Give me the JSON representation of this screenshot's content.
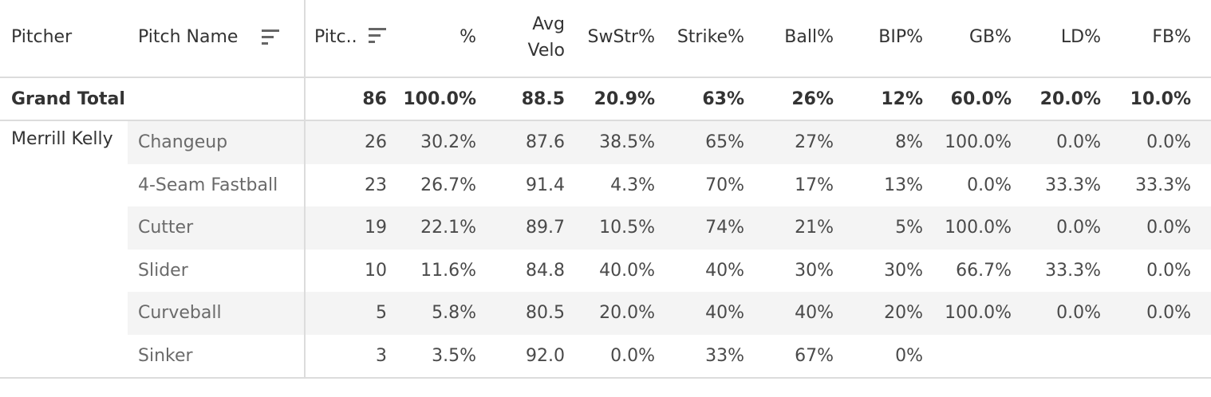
{
  "columns": {
    "pitcher": "Pitcher",
    "pitch_name": "Pitch Name",
    "pitches": "Pitc..",
    "pct": "%",
    "avg_velo_1": "Avg",
    "avg_velo_2": "Velo",
    "swstr": "SwStr%",
    "strike": "Strike%",
    "ball": "Ball%",
    "bip": "BIP%",
    "gb": "GB%",
    "ld": "LD%",
    "fb": "FB%"
  },
  "grand_total": {
    "label": "Grand Total",
    "pitches": "86",
    "pct": "100.0%",
    "avg_velo": "88.5",
    "swstr": "20.9%",
    "strike": "63%",
    "ball": "26%",
    "bip": "12%",
    "gb": "60.0%",
    "ld": "20.0%",
    "fb": "10.0%"
  },
  "pitcher_name": "Merrill Kelly",
  "rows": [
    {
      "name": "Changeup",
      "pitches": "26",
      "pct": "30.2%",
      "avg_velo": "87.6",
      "swstr": "38.5%",
      "strike": "65%",
      "ball": "27%",
      "bip": "8%",
      "gb": "100.0%",
      "ld": "0.0%",
      "fb": "0.0%"
    },
    {
      "name": "4-Seam Fastball",
      "pitches": "23",
      "pct": "26.7%",
      "avg_velo": "91.4",
      "swstr": "4.3%",
      "strike": "70%",
      "ball": "17%",
      "bip": "13%",
      "gb": "0.0%",
      "ld": "33.3%",
      "fb": "33.3%"
    },
    {
      "name": "Cutter",
      "pitches": "19",
      "pct": "22.1%",
      "avg_velo": "89.7",
      "swstr": "10.5%",
      "strike": "74%",
      "ball": "21%",
      "bip": "5%",
      "gb": "100.0%",
      "ld": "0.0%",
      "fb": "0.0%"
    },
    {
      "name": "Slider",
      "pitches": "10",
      "pct": "11.6%",
      "avg_velo": "84.8",
      "swstr": "40.0%",
      "strike": "40%",
      "ball": "30%",
      "bip": "30%",
      "gb": "66.7%",
      "ld": "33.3%",
      "fb": "0.0%"
    },
    {
      "name": "Curveball",
      "pitches": "5",
      "pct": "5.8%",
      "avg_velo": "80.5",
      "swstr": "20.0%",
      "strike": "40%",
      "ball": "40%",
      "bip": "20%",
      "gb": "100.0%",
      "ld": "0.0%",
      "fb": "0.0%"
    },
    {
      "name": "Sinker",
      "pitches": "3",
      "pct": "3.5%",
      "avg_velo": "92.0",
      "swstr": "0.0%",
      "strike": "33%",
      "ball": "67%",
      "bip": "0%",
      "gb": "",
      "ld": "",
      "fb": ""
    }
  ]
}
